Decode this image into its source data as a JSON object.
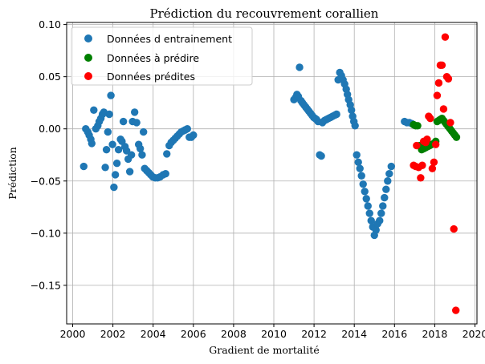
{
  "chart_data": {
    "type": "scatter",
    "title": "Prédiction du recouvrement corallien",
    "xlabel": "Gradient de mortalité",
    "ylabel": "Prédiction",
    "xlim": [
      1999.7,
      2020.1
    ],
    "ylim": [
      -0.187,
      0.102
    ],
    "x_ticks": [
      2000,
      2002,
      2004,
      2006,
      2008,
      2010,
      2012,
      2014,
      2016,
      2018,
      2020
    ],
    "y_ticks": [
      -0.15,
      -0.1,
      -0.05,
      0.0,
      0.05,
      0.1
    ],
    "y_tick_labels": [
      "−0.15",
      "−0.10",
      "−0.05",
      "0.00",
      "0.05",
      "0.10"
    ],
    "grid": true,
    "legend_position": "top-left",
    "series": [
      {
        "name": "Données d entrainement",
        "color": "#1f77b4",
        "points": [
          [
            2000.55,
            -0.036
          ],
          [
            2000.65,
            0.0
          ],
          [
            2000.75,
            -0.003
          ],
          [
            2000.82,
            -0.006
          ],
          [
            2000.9,
            -0.01
          ],
          [
            2000.95,
            -0.014
          ],
          [
            2001.05,
            0.018
          ],
          [
            2001.15,
            0.0
          ],
          [
            2001.25,
            0.003
          ],
          [
            2001.32,
            0.007
          ],
          [
            2001.4,
            0.01
          ],
          [
            2001.48,
            0.014
          ],
          [
            2001.55,
            0.016
          ],
          [
            2001.62,
            -0.037
          ],
          [
            2001.68,
            -0.02
          ],
          [
            2001.75,
            -0.003
          ],
          [
            2001.82,
            0.014
          ],
          [
            2001.9,
            0.032
          ],
          [
            2001.98,
            -0.015
          ],
          [
            2002.05,
            -0.056
          ],
          [
            2002.12,
            -0.044
          ],
          [
            2002.2,
            -0.033
          ],
          [
            2002.28,
            -0.02
          ],
          [
            2002.38,
            -0.01
          ],
          [
            2002.45,
            -0.012
          ],
          [
            2002.52,
            0.007
          ],
          [
            2002.6,
            -0.017
          ],
          [
            2002.68,
            -0.021
          ],
          [
            2002.76,
            -0.029
          ],
          [
            2002.84,
            -0.041
          ],
          [
            2002.92,
            -0.025
          ],
          [
            2002.98,
            0.007
          ],
          [
            2003.08,
            0.016
          ],
          [
            2003.18,
            0.006
          ],
          [
            2003.28,
            -0.015
          ],
          [
            2003.36,
            -0.019
          ],
          [
            2003.45,
            -0.025
          ],
          [
            2003.52,
            -0.003
          ],
          [
            2003.58,
            -0.038
          ],
          [
            2003.68,
            -0.04
          ],
          [
            2003.78,
            -0.042
          ],
          [
            2003.88,
            -0.044
          ],
          [
            2003.98,
            -0.046
          ],
          [
            2004.1,
            -0.047
          ],
          [
            2004.22,
            -0.047
          ],
          [
            2004.35,
            -0.046
          ],
          [
            2004.5,
            -0.044
          ],
          [
            2004.62,
            -0.043
          ],
          [
            2004.68,
            -0.024
          ],
          [
            2004.8,
            -0.016
          ],
          [
            2004.9,
            -0.013
          ],
          [
            2005.0,
            -0.011
          ],
          [
            2005.1,
            -0.009
          ],
          [
            2005.2,
            -0.007
          ],
          [
            2005.3,
            -0.005
          ],
          [
            2005.4,
            -0.003
          ],
          [
            2005.5,
            -0.002
          ],
          [
            2005.6,
            -0.001
          ],
          [
            2005.7,
            0.0
          ],
          [
            2005.8,
            -0.008
          ],
          [
            2005.9,
            -0.008
          ],
          [
            2006.0,
            -0.006
          ],
          [
            2011.0,
            0.028
          ],
          [
            2011.08,
            0.03
          ],
          [
            2011.15,
            0.033
          ],
          [
            2011.22,
            0.031
          ],
          [
            2011.28,
            0.059
          ],
          [
            2011.35,
            0.027
          ],
          [
            2011.42,
            0.025
          ],
          [
            2011.5,
            0.023
          ],
          [
            2011.58,
            0.021
          ],
          [
            2011.66,
            0.019
          ],
          [
            2011.74,
            0.017
          ],
          [
            2011.82,
            0.015
          ],
          [
            2011.9,
            0.013
          ],
          [
            2011.98,
            0.011
          ],
          [
            2012.05,
            0.01
          ],
          [
            2012.12,
            0.009
          ],
          [
            2012.2,
            0.007
          ],
          [
            2012.28,
            -0.025
          ],
          [
            2012.36,
            -0.026
          ],
          [
            2012.42,
            0.006
          ],
          [
            2012.52,
            0.008
          ],
          [
            2012.62,
            0.009
          ],
          [
            2012.72,
            0.01
          ],
          [
            2012.82,
            0.011
          ],
          [
            2012.92,
            0.012
          ],
          [
            2013.02,
            0.013
          ],
          [
            2013.12,
            0.014
          ],
          [
            2013.2,
            0.047
          ],
          [
            2013.28,
            0.054
          ],
          [
            2013.36,
            0.051
          ],
          [
            2013.44,
            0.047
          ],
          [
            2013.52,
            0.043
          ],
          [
            2013.6,
            0.038
          ],
          [
            2013.66,
            0.033
          ],
          [
            2013.72,
            0.028
          ],
          [
            2013.8,
            0.023
          ],
          [
            2013.86,
            0.018
          ],
          [
            2013.92,
            0.012
          ],
          [
            2013.98,
            0.007
          ],
          [
            2014.04,
            0.003
          ],
          [
            2014.12,
            -0.025
          ],
          [
            2014.2,
            -0.032
          ],
          [
            2014.28,
            -0.038
          ],
          [
            2014.36,
            -0.045
          ],
          [
            2014.44,
            -0.053
          ],
          [
            2014.52,
            -0.06
          ],
          [
            2014.6,
            -0.067
          ],
          [
            2014.68,
            -0.074
          ],
          [
            2014.76,
            -0.081
          ],
          [
            2014.84,
            -0.088
          ],
          [
            2014.92,
            -0.094
          ],
          [
            2015.0,
            -0.102
          ],
          [
            2015.08,
            -0.097
          ],
          [
            2015.16,
            -0.091
          ],
          [
            2015.26,
            -0.088
          ],
          [
            2015.34,
            -0.081
          ],
          [
            2015.42,
            -0.074
          ],
          [
            2015.5,
            -0.066
          ],
          [
            2015.58,
            -0.058
          ],
          [
            2015.66,
            -0.05
          ],
          [
            2015.74,
            -0.043
          ],
          [
            2015.84,
            -0.036
          ],
          [
            2016.5,
            0.007
          ],
          [
            2016.62,
            0.006
          ],
          [
            2016.74,
            0.006
          ],
          [
            2016.86,
            0.005
          ]
        ]
      },
      {
        "name": "Données à prédire",
        "color": "#008000",
        "points": [
          [
            2016.95,
            0.004
          ],
          [
            2017.05,
            0.003
          ],
          [
            2017.15,
            0.003
          ],
          [
            2017.25,
            -0.016
          ],
          [
            2017.35,
            -0.02
          ],
          [
            2017.45,
            -0.019
          ],
          [
            2017.55,
            -0.018
          ],
          [
            2017.65,
            -0.017
          ],
          [
            2017.75,
            -0.016
          ],
          [
            2017.85,
            -0.015
          ],
          [
            2017.95,
            -0.014
          ],
          [
            2018.05,
            -0.012
          ],
          [
            2018.12,
            0.007
          ],
          [
            2018.2,
            0.008
          ],
          [
            2018.28,
            0.009
          ],
          [
            2018.36,
            0.01
          ],
          [
            2018.44,
            0.008
          ],
          [
            2018.52,
            0.006
          ],
          [
            2018.6,
            0.004
          ],
          [
            2018.68,
            0.002
          ],
          [
            2018.76,
            0.0
          ],
          [
            2018.84,
            -0.002
          ],
          [
            2018.92,
            -0.004
          ],
          [
            2019.0,
            -0.006
          ],
          [
            2019.08,
            -0.008
          ]
        ]
      },
      {
        "name": "Données prédites",
        "color": "#ff0000",
        "points": [
          [
            2016.95,
            -0.035
          ],
          [
            2017.05,
            -0.036
          ],
          [
            2017.1,
            -0.016
          ],
          [
            2017.2,
            -0.037
          ],
          [
            2017.3,
            -0.047
          ],
          [
            2017.38,
            -0.035
          ],
          [
            2017.45,
            -0.012
          ],
          [
            2017.55,
            -0.013
          ],
          [
            2017.62,
            -0.01
          ],
          [
            2017.7,
            0.012
          ],
          [
            2017.78,
            0.01
          ],
          [
            2017.88,
            -0.038
          ],
          [
            2017.96,
            -0.032
          ],
          [
            2018.05,
            -0.015
          ],
          [
            2018.12,
            0.032
          ],
          [
            2018.2,
            0.044
          ],
          [
            2018.28,
            0.061
          ],
          [
            2018.36,
            0.061
          ],
          [
            2018.44,
            0.019
          ],
          [
            2018.52,
            0.088
          ],
          [
            2018.6,
            0.05
          ],
          [
            2018.68,
            0.048
          ],
          [
            2018.78,
            0.006
          ],
          [
            2018.95,
            -0.096
          ],
          [
            2019.05,
            -0.174
          ]
        ]
      }
    ]
  }
}
